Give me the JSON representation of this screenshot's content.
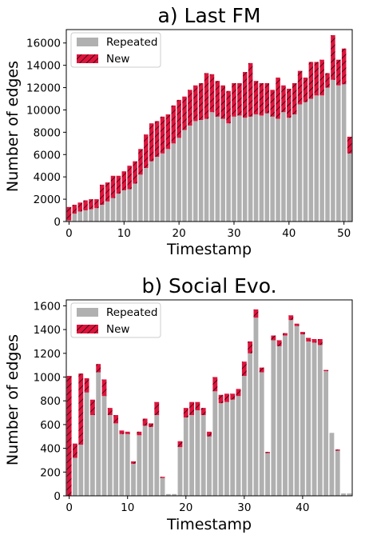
{
  "colors": {
    "repeated": "#b0b0b0",
    "new": "#dc143c",
    "hatch": "#000000"
  },
  "chart_data": [
    {
      "type": "bar",
      "stacked": true,
      "title": "a) Last FM",
      "xlabel": "Timestamp",
      "ylabel": "Number of edges",
      "xlim": [
        -0.5,
        51.5
      ],
      "ylim": [
        0,
        17200
      ],
      "xticks": [
        0,
        10,
        20,
        30,
        40,
        50
      ],
      "yticks": [
        0,
        2000,
        4000,
        6000,
        8000,
        10000,
        12000,
        14000,
        16000
      ],
      "legend": "top-left",
      "categories": [
        0,
        1,
        2,
        3,
        4,
        5,
        6,
        7,
        8,
        9,
        10,
        11,
        12,
        13,
        14,
        15,
        16,
        17,
        18,
        19,
        20,
        21,
        22,
        23,
        24,
        25,
        26,
        27,
        28,
        29,
        30,
        31,
        32,
        33,
        34,
        35,
        36,
        37,
        38,
        39,
        40,
        41,
        42,
        43,
        44,
        45,
        46,
        47,
        48,
        49,
        50,
        51
      ],
      "series": [
        {
          "name": "Repeated",
          "values": [
            100,
            700,
            900,
            1000,
            1100,
            1200,
            1500,
            1800,
            2100,
            2500,
            2800,
            2900,
            3400,
            4200,
            4800,
            5400,
            5800,
            6100,
            6500,
            7000,
            7500,
            8200,
            8600,
            9000,
            9100,
            9200,
            9800,
            9400,
            9200,
            8800,
            9400,
            9500,
            9300,
            9400,
            9600,
            9500,
            9700,
            9400,
            9200,
            9800,
            9300,
            9600,
            10500,
            10700,
            11000,
            11300,
            11300,
            12000,
            12700,
            12200,
            12300,
            6100
          ]
        },
        {
          "name": "New",
          "values": [
            1200,
            800,
            800,
            900,
            900,
            800,
            1800,
            1700,
            2000,
            1600,
            1700,
            2100,
            2000,
            2300,
            3000,
            3400,
            3200,
            3300,
            3100,
            3400,
            3400,
            3000,
            3200,
            3200,
            3300,
            4100,
            3400,
            3200,
            3000,
            2900,
            3000,
            2900,
            4100,
            4800,
            3000,
            2900,
            2700,
            2400,
            3700,
            2400,
            2600,
            2800,
            3000,
            2200,
            3300,
            3000,
            3200,
            1300,
            4000,
            2300,
            3200,
            1500
          ]
        }
      ]
    },
    {
      "type": "bar",
      "stacked": true,
      "title": "b) Social Evo.",
      "xlabel": "Timestamp",
      "ylabel": "Number of edges",
      "xlim": [
        -0.5,
        48.5
      ],
      "ylim": [
        0,
        1650
      ],
      "xticks": [
        0,
        10,
        20,
        30,
        40
      ],
      "yticks": [
        0,
        200,
        400,
        600,
        800,
        1000,
        1200,
        1400,
        1600
      ],
      "legend": "top-left",
      "categories": [
        0,
        1,
        2,
        3,
        4,
        5,
        6,
        7,
        8,
        9,
        10,
        11,
        12,
        13,
        14,
        15,
        16,
        17,
        18,
        19,
        20,
        21,
        22,
        23,
        24,
        25,
        26,
        27,
        28,
        29,
        30,
        31,
        32,
        33,
        34,
        35,
        36,
        37,
        38,
        39,
        40,
        41,
        42,
        43,
        44,
        45,
        46,
        47,
        48
      ],
      "series": [
        {
          "name": "Repeated",
          "values": [
            0,
            320,
            430,
            870,
            680,
            1040,
            840,
            680,
            610,
            520,
            520,
            270,
            510,
            590,
            580,
            680,
            150,
            15,
            15,
            410,
            660,
            680,
            720,
            680,
            500,
            880,
            780,
            790,
            810,
            840,
            1010,
            1200,
            1500,
            1040,
            360,
            1310,
            1260,
            1350,
            1480,
            1430,
            1360,
            1300,
            1290,
            1270,
            1050,
            530,
            380,
            20,
            20
          ]
        },
        {
          "name": "New",
          "values": [
            1010,
            120,
            600,
            120,
            130,
            70,
            140,
            60,
            70,
            30,
            20,
            20,
            30,
            60,
            30,
            110,
            10,
            0,
            0,
            50,
            80,
            110,
            70,
            60,
            40,
            120,
            70,
            70,
            50,
            60,
            120,
            100,
            70,
            40,
            10,
            40,
            50,
            20,
            40,
            20,
            20,
            30,
            30,
            50,
            10,
            0,
            10,
            0,
            0
          ]
        }
      ]
    }
  ]
}
